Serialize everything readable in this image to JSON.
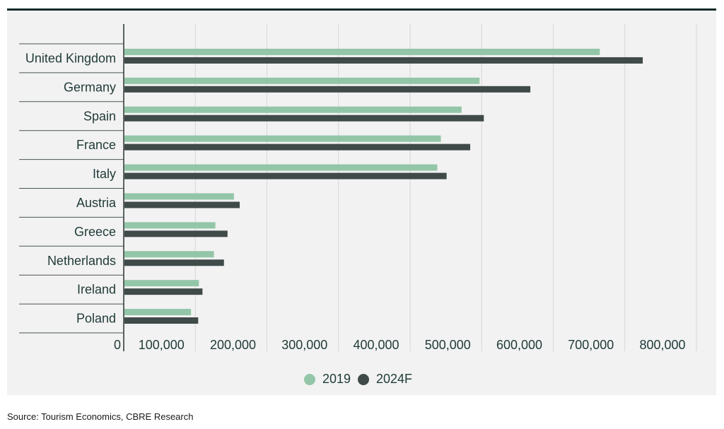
{
  "chart_data": {
    "type": "bar",
    "orientation": "horizontal",
    "title": "",
    "xlabel": "",
    "ylabel": "",
    "categories": [
      "United Kingdom",
      "Germany",
      "Spain",
      "France",
      "Italy",
      "Austria",
      "Greece",
      "Netherlands",
      "Ireland",
      "Poland"
    ],
    "series": [
      {
        "name": "2019",
        "color": "#93c6a8",
        "values": [
          665000,
          497000,
          472000,
          443000,
          438000,
          154000,
          128000,
          126000,
          105000,
          94000
        ]
      },
      {
        "name": "2024F",
        "color": "#3f4a49",
        "values": [
          725000,
          568000,
          503000,
          484000,
          451000,
          162000,
          145000,
          140000,
          110000,
          104000
        ]
      }
    ],
    "xlim": [
      0,
      800000
    ],
    "xticks": [
      0,
      100000,
      200000,
      300000,
      400000,
      500000,
      600000,
      700000,
      800000
    ],
    "xtick_labels": [
      "0",
      "100,000",
      "200,000",
      "300,000",
      "400,000",
      "500,000",
      "600,000",
      "700,000",
      "800,000"
    ],
    "grid": true,
    "legend": "bottom-center"
  },
  "source": "Source: Tourism Economics, CBRE Research"
}
